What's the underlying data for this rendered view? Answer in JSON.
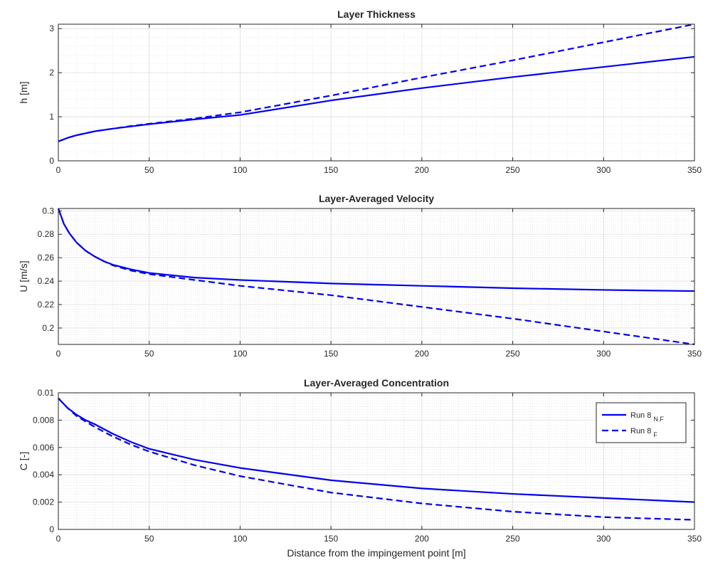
{
  "chart_data": [
    {
      "type": "line",
      "title": "Layer Thickness",
      "xlabel": "",
      "ylabel": "h [m]",
      "xlim": [
        0,
        350
      ],
      "ylim": [
        0,
        3.1
      ],
      "xticks": [
        "0",
        "50",
        "100",
        "150",
        "200",
        "250",
        "300",
        "350"
      ],
      "yticks": [
        "0",
        "1",
        "2",
        "3"
      ],
      "xtick_values": [
        0,
        50,
        100,
        150,
        200,
        250,
        300,
        350
      ],
      "ytick_values": [
        0,
        1,
        2,
        3
      ],
      "grid": true,
      "minor_grid": true,
      "series": [
        {
          "name": "Run 8 N.F",
          "style": "solid",
          "color": "#0000ee",
          "x": [
            0,
            5,
            10,
            20,
            30,
            40,
            50,
            75,
            100,
            150,
            200,
            250,
            300,
            350
          ],
          "y": [
            0.44,
            0.52,
            0.58,
            0.67,
            0.73,
            0.78,
            0.83,
            0.94,
            1.04,
            1.37,
            1.65,
            1.9,
            2.13,
            2.36
          ]
        },
        {
          "name": "Run 8 F",
          "style": "dashed",
          "color": "#0000ee",
          "x": [
            0,
            5,
            10,
            20,
            30,
            40,
            50,
            75,
            100,
            150,
            200,
            250,
            300,
            350
          ],
          "y": [
            0.44,
            0.52,
            0.58,
            0.67,
            0.73,
            0.79,
            0.84,
            0.96,
            1.1,
            1.48,
            1.89,
            2.28,
            2.69,
            3.1
          ]
        }
      ]
    },
    {
      "type": "line",
      "title": "Layer-Averaged Velocity",
      "xlabel": "",
      "ylabel": "U [m/s]",
      "xlim": [
        0,
        350
      ],
      "ylim": [
        0.186,
        0.302
      ],
      "xticks": [
        "0",
        "50",
        "100",
        "150",
        "200",
        "250",
        "300",
        "350"
      ],
      "yticks": [
        "0.2",
        "0.22",
        "0.24",
        "0.26",
        "0.28",
        "0.3"
      ],
      "xtick_values": [
        0,
        50,
        100,
        150,
        200,
        250,
        300,
        350
      ],
      "ytick_values": [
        0.2,
        0.22,
        0.24,
        0.26,
        0.28,
        0.3
      ],
      "grid": true,
      "minor_grid": true,
      "series": [
        {
          "name": "Run 8 N.F",
          "style": "solid",
          "color": "#0000ee",
          "x": [
            0,
            3,
            6,
            10,
            15,
            20,
            25,
            30,
            40,
            50,
            75,
            100,
            150,
            200,
            250,
            300,
            350
          ],
          "y": [
            0.302,
            0.289,
            0.281,
            0.273,
            0.266,
            0.261,
            0.257,
            0.254,
            0.25,
            0.247,
            0.243,
            0.241,
            0.238,
            0.236,
            0.234,
            0.2325,
            0.2315
          ]
        },
        {
          "name": "Run 8 F",
          "style": "dashed",
          "color": "#0000ee",
          "x": [
            0,
            3,
            6,
            10,
            15,
            20,
            25,
            30,
            40,
            50,
            75,
            100,
            150,
            200,
            250,
            300,
            350
          ],
          "y": [
            0.302,
            0.289,
            0.281,
            0.273,
            0.266,
            0.261,
            0.257,
            0.2535,
            0.249,
            0.246,
            0.241,
            0.236,
            0.228,
            0.218,
            0.208,
            0.197,
            0.186
          ]
        }
      ]
    },
    {
      "type": "line",
      "title": "Layer-Averaged Concentration",
      "xlabel": "Distance from the impingement point [m]",
      "ylabel": "C [-]",
      "xlim": [
        0,
        350
      ],
      "ylim": [
        0,
        0.01
      ],
      "xticks": [
        "0",
        "50",
        "100",
        "150",
        "200",
        "250",
        "300",
        "350"
      ],
      "yticks": [
        "0",
        "0.002",
        "0.004",
        "0.006",
        "0.008",
        "0.01"
      ],
      "xtick_values": [
        0,
        50,
        100,
        150,
        200,
        250,
        300,
        350
      ],
      "ytick_values": [
        0,
        0.002,
        0.004,
        0.006,
        0.008,
        0.01
      ],
      "grid": true,
      "minor_grid": true,
      "legend": {
        "placement": "top-right",
        "entries": [
          {
            "label": "Run 8",
            "subscript": "N.F",
            "style": "solid"
          },
          {
            "label": "Run 8",
            "subscript": "F",
            "style": "dashed"
          }
        ]
      },
      "series": [
        {
          "name": "Run 8 N.F",
          "style": "solid",
          "color": "#0000ee",
          "x": [
            0,
            5,
            10,
            15,
            20,
            30,
            40,
            50,
            75,
            100,
            150,
            200,
            250,
            300,
            350
          ],
          "y": [
            0.0096,
            0.0089,
            0.0084,
            0.008,
            0.0077,
            0.007,
            0.0064,
            0.0059,
            0.0051,
            0.0045,
            0.0036,
            0.003,
            0.0026,
            0.0023,
            0.002
          ]
        },
        {
          "name": "Run 8 F",
          "style": "dashed",
          "color": "#0000ee",
          "x": [
            0,
            5,
            10,
            15,
            20,
            30,
            40,
            50,
            75,
            100,
            150,
            200,
            250,
            300,
            350
          ],
          "y": [
            0.0096,
            0.0089,
            0.0083,
            0.0079,
            0.0075,
            0.0068,
            0.0062,
            0.0057,
            0.0047,
            0.0039,
            0.0027,
            0.0019,
            0.0013,
            0.0009,
            0.0007
          ]
        }
      ]
    }
  ]
}
